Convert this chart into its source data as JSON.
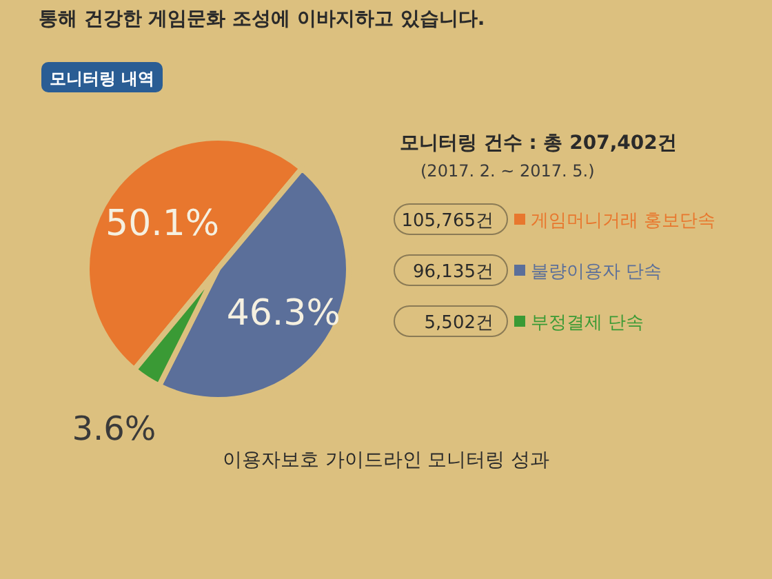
{
  "chart_data": {
    "type": "pie",
    "title": "모니터링 내역",
    "subtitle": "모니터링 건수 : 총 207,402건",
    "categories": [
      "게임머니거래 홍보단속",
      "불량이용자 단속",
      "부정결제 단속"
    ],
    "values": [
      50.1,
      46.3,
      3.6
    ],
    "colors": [
      "#e8772e",
      "#5b6f9a",
      "#3a9a35"
    ],
    "value_labels": [
      "50.1%",
      "46.3%",
      "3.6%"
    ],
    "legend": "right",
    "annotations": [
      "통해 건강한 게임문화 조성에 이바지하고 있습니다.",
      "(2017. 2. ~ 2017. 5.)",
      "105,765건",
      "96,135건",
      "5,502건",
      "이용자보호 가이드라인 모니터링 성과"
    ]
  }
}
